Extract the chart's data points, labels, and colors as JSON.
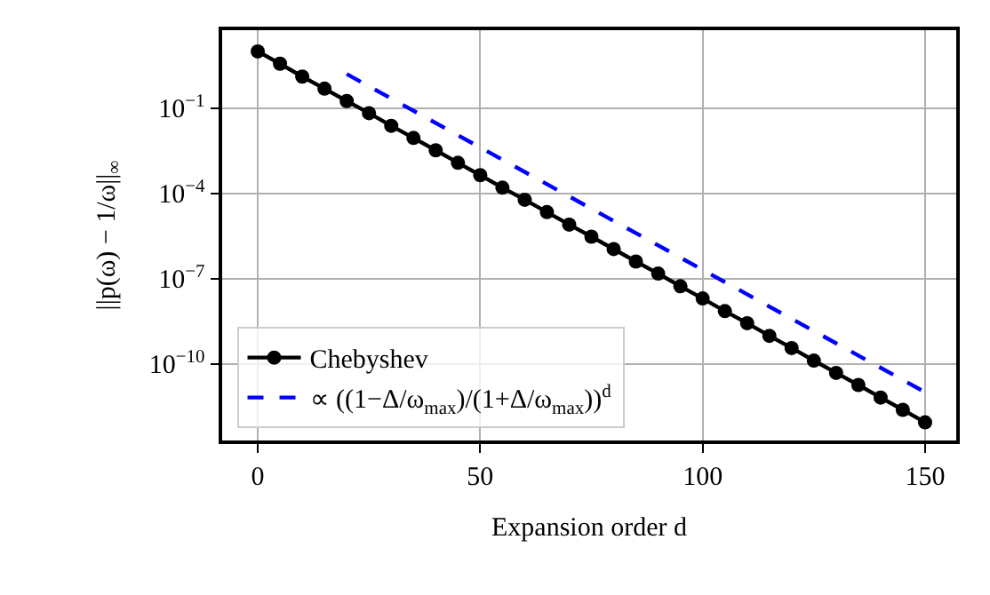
{
  "chart_data": {
    "type": "line",
    "xlabel": "Expansion order d",
    "ylabel": "||p(ω) − 1/ω||$_{∞}$",
    "log": "y",
    "grid": true,
    "legend": "bottom left",
    "xlim": [
      -8,
      157
    ],
    "xticks": [
      0,
      50,
      100,
      150
    ],
    "ylim": [
      2e-13,
      56
    ],
    "yticks": [
      {
        "value": 0.1,
        "label": "10$^{−1}$"
      },
      {
        "value": 0.0001,
        "label": "10$^{−4}$"
      },
      {
        "value": 1e-07,
        "label": "10$^{−7}$"
      },
      {
        "value": 1e-10,
        "label": "10$^{−10}$"
      }
    ],
    "series": [
      {
        "name": "Chebyshev",
        "color": "#000000",
        "marker": "circle",
        "line_style": "solid",
        "x": [
          0,
          5,
          10,
          15,
          20,
          25,
          30,
          35,
          40,
          45,
          50,
          55,
          60,
          65,
          70,
          75,
          80,
          85,
          90,
          95,
          100,
          105,
          110,
          115,
          120,
          125,
          130,
          135,
          140,
          145,
          150
        ],
        "values": [
          10,
          3.7,
          1.3,
          0.49,
          0.18,
          0.067,
          0.024,
          0.009,
          0.0033,
          0.0012,
          0.00044,
          0.00016,
          6e-05,
          2.2e-05,
          8e-06,
          3e-06,
          1.1e-06,
          4e-07,
          1.5e-07,
          5.4e-08,
          2e-08,
          7.2e-09,
          2.7e-09,
          9.7e-10,
          3.6e-10,
          1.3e-10,
          4.8e-11,
          1.8e-11,
          6.5e-12,
          2.4e-12,
          8.7e-13
        ]
      },
      {
        "name": "∝ ((1−Δ/ω$_{max}$)/(1+Δ/ω$_{max}$))$^{d}$",
        "color": "#0000ff",
        "marker": "none",
        "line_style": "dashed",
        "x": [
          20,
          150
        ],
        "values": [
          1.6,
          1e-11
        ]
      }
    ]
  }
}
